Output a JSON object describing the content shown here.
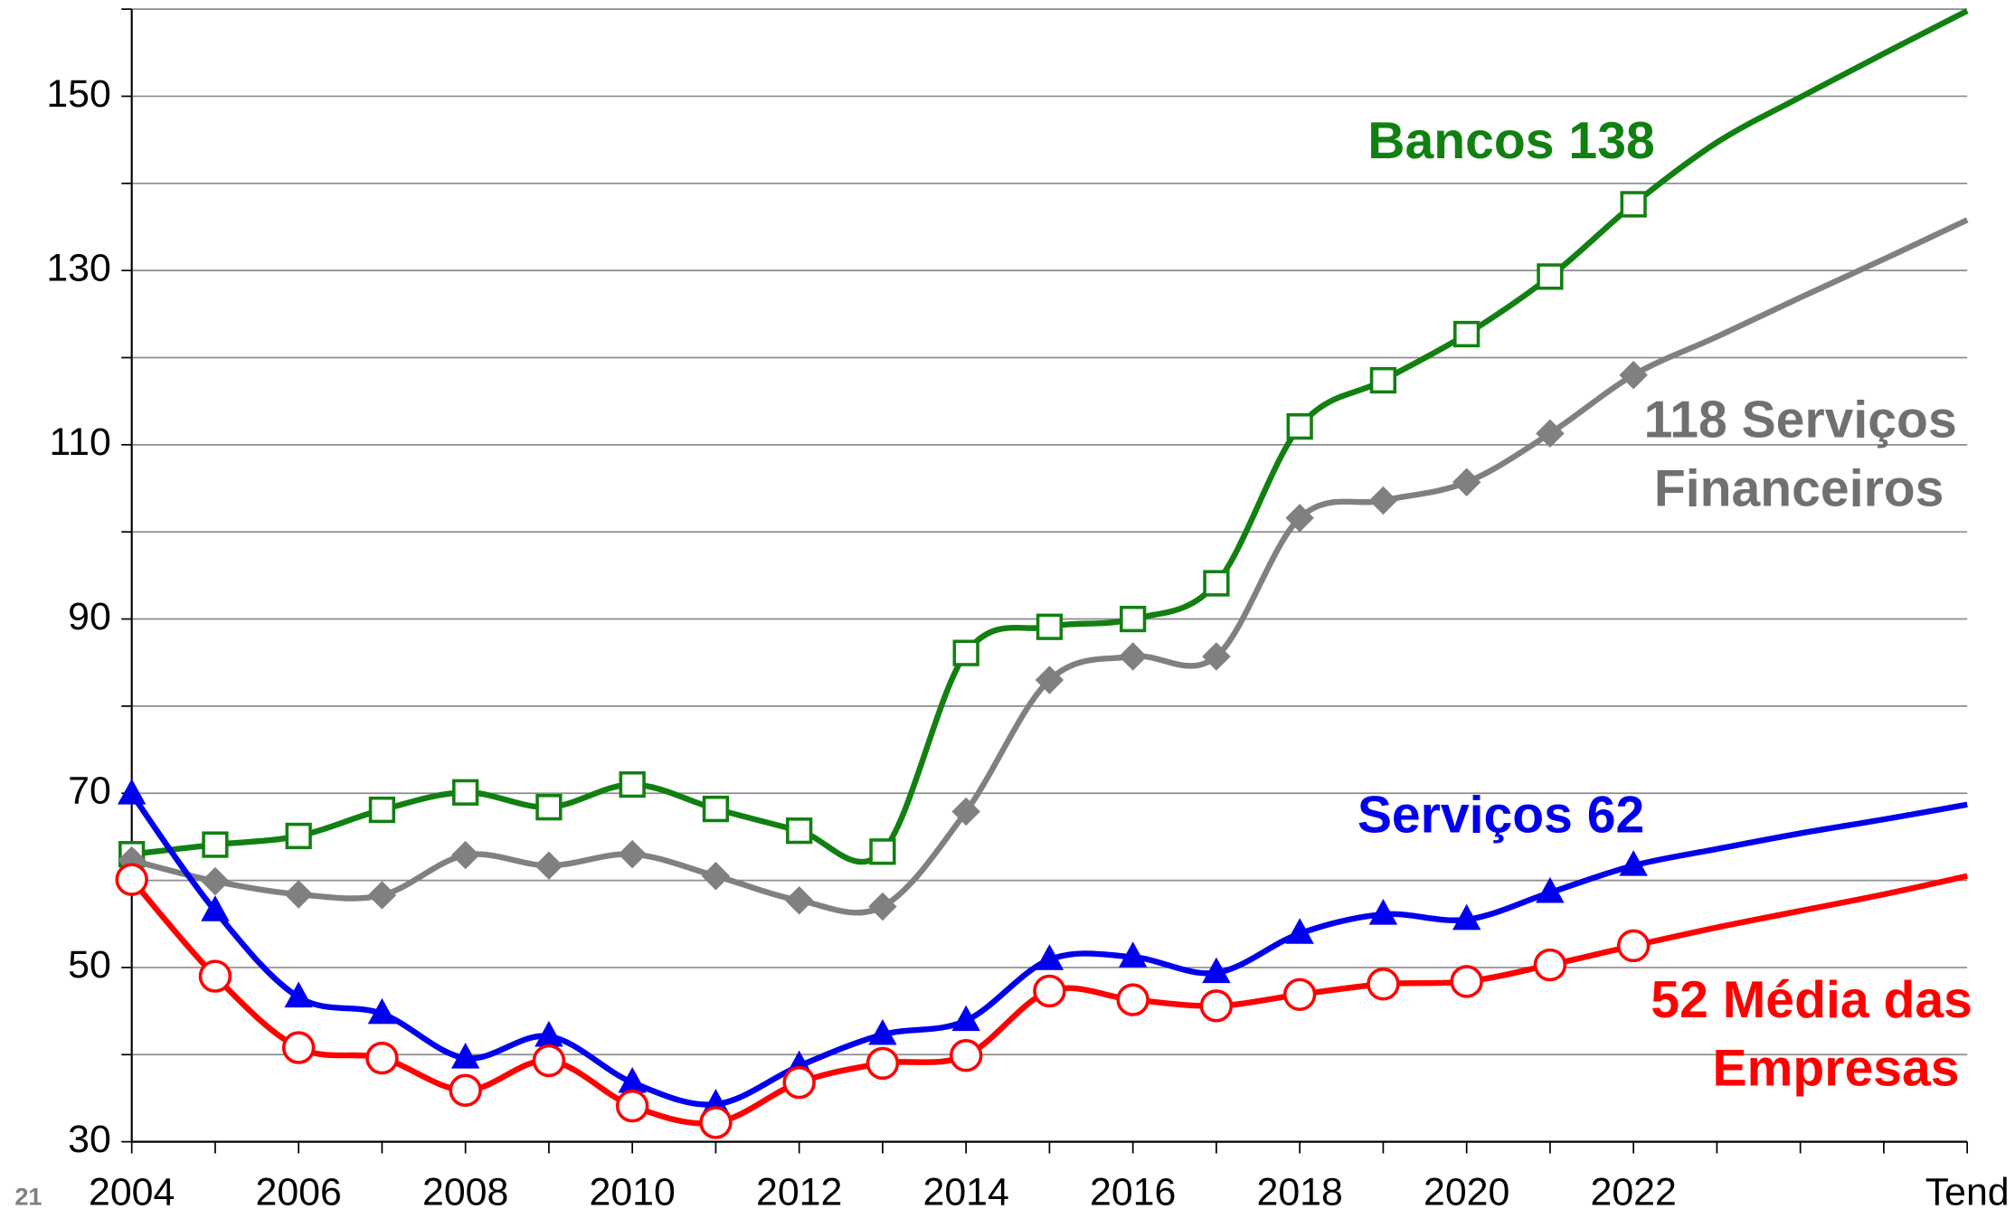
{
  "chart_data": {
    "type": "line",
    "page_number": "21",
    "categories": [
      "2004",
      null,
      "2006",
      null,
      "2008",
      null,
      "2010",
      null,
      "2012",
      null,
      "2014",
      null,
      "2016",
      null,
      "2018",
      null,
      "2020",
      null,
      "2022",
      null,
      null,
      null,
      "Tend"
    ],
    "marker_last": "2022",
    "ylim": [
      30,
      160
    ],
    "yticks": [
      30,
      50,
      70,
      90,
      110,
      130,
      150
    ],
    "minor_yticks": [
      40,
      60,
      80,
      100,
      120,
      140,
      160
    ],
    "grid": true,
    "series": [
      {
        "color": "#118011",
        "marker": "square",
        "values": [
          63.0,
          64.1,
          65.1,
          68.1,
          70.1,
          68.4,
          71.0,
          68.2,
          65.7,
          63.3,
          86.1,
          89.1,
          90.0,
          94.1,
          112.1,
          117.4,
          122.7,
          129.3,
          137.6,
          144.7,
          149.9,
          154.9,
          159.8
        ]
      },
      {
        "color": "#808080",
        "marker": "diamond",
        "values": [
          62.3,
          59.9,
          58.4,
          58.3,
          62.9,
          61.7,
          63.0,
          60.5,
          57.7,
          57.0,
          67.9,
          83.0,
          85.7,
          85.7,
          101.6,
          103.6,
          105.7,
          111.3,
          118.0,
          122.4,
          126.9,
          131.3,
          135.8
        ]
      },
      {
        "color": "#0000ee",
        "marker": "triangle",
        "values": [
          69.9,
          56.5,
          46.6,
          44.7,
          39.6,
          42.1,
          36.8,
          34.3,
          38.7,
          42.3,
          43.9,
          50.9,
          51.2,
          49.4,
          53.9,
          56.1,
          55.5,
          58.6,
          61.7,
          63.6,
          65.4,
          67.0,
          68.7
        ]
      },
      {
        "color": "#ff0000",
        "marker": "circle",
        "values": [
          60.1,
          49.0,
          40.8,
          39.6,
          35.9,
          39.3,
          34.1,
          32.2,
          36.8,
          39.0,
          39.9,
          47.3,
          46.3,
          45.6,
          46.9,
          48.1,
          48.4,
          50.3,
          52.5,
          54.6,
          56.5,
          58.4,
          60.5
        ]
      }
    ],
    "annotations": [
      {
        "color": "#118011",
        "lines": [
          "Bancos  138"
        ]
      },
      {
        "color": "#707070",
        "lines": [
          "118  Serviços",
          "Financeiros"
        ]
      },
      {
        "color": "#0000ee",
        "lines": [
          "Serviços  62"
        ]
      },
      {
        "color": "#ff0000",
        "lines": [
          "52  Média das",
          "Empresas"
        ]
      }
    ]
  }
}
